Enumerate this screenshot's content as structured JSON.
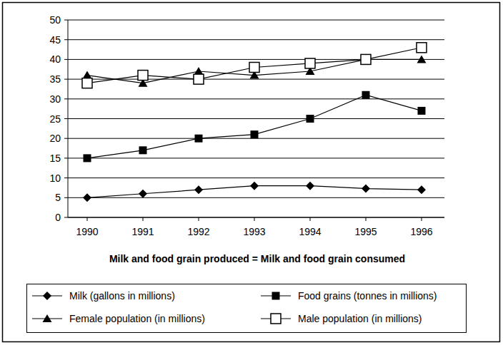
{
  "chart_data": {
    "type": "line",
    "annotation": "Milk  and food grain produced = Milk  and food grain  consumed",
    "categories": [
      "1990",
      "1991",
      "1992",
      "1993",
      "1994",
      "1995",
      "1996"
    ],
    "series": [
      {
        "name": "Milk (gallons  in millions)",
        "color": "#000000",
        "marker": "diamond",
        "values": [
          5,
          6,
          7,
          8,
          8,
          7.3,
          7
        ]
      },
      {
        "name": "Food grains (tonnes in millions)",
        "color": "#000000",
        "marker": "square",
        "values": [
          15,
          17,
          20,
          21,
          25,
          31,
          27
        ]
      },
      {
        "name": "Female population (in millions)",
        "color": "#000000",
        "marker": "triangle",
        "values": [
          36,
          34,
          37,
          36,
          37,
          40,
          40
        ]
      },
      {
        "name": "Male  population (in millions)",
        "color": "#000000",
        "marker": "open-square",
        "values": [
          34,
          36,
          35,
          38,
          39,
          40,
          43
        ]
      }
    ],
    "ylim": [
      0,
      50
    ],
    "yticks": [
      0,
      5,
      10,
      15,
      20,
      25,
      30,
      35,
      40,
      45,
      50
    ],
    "grid": true,
    "legend": "bottom"
  }
}
